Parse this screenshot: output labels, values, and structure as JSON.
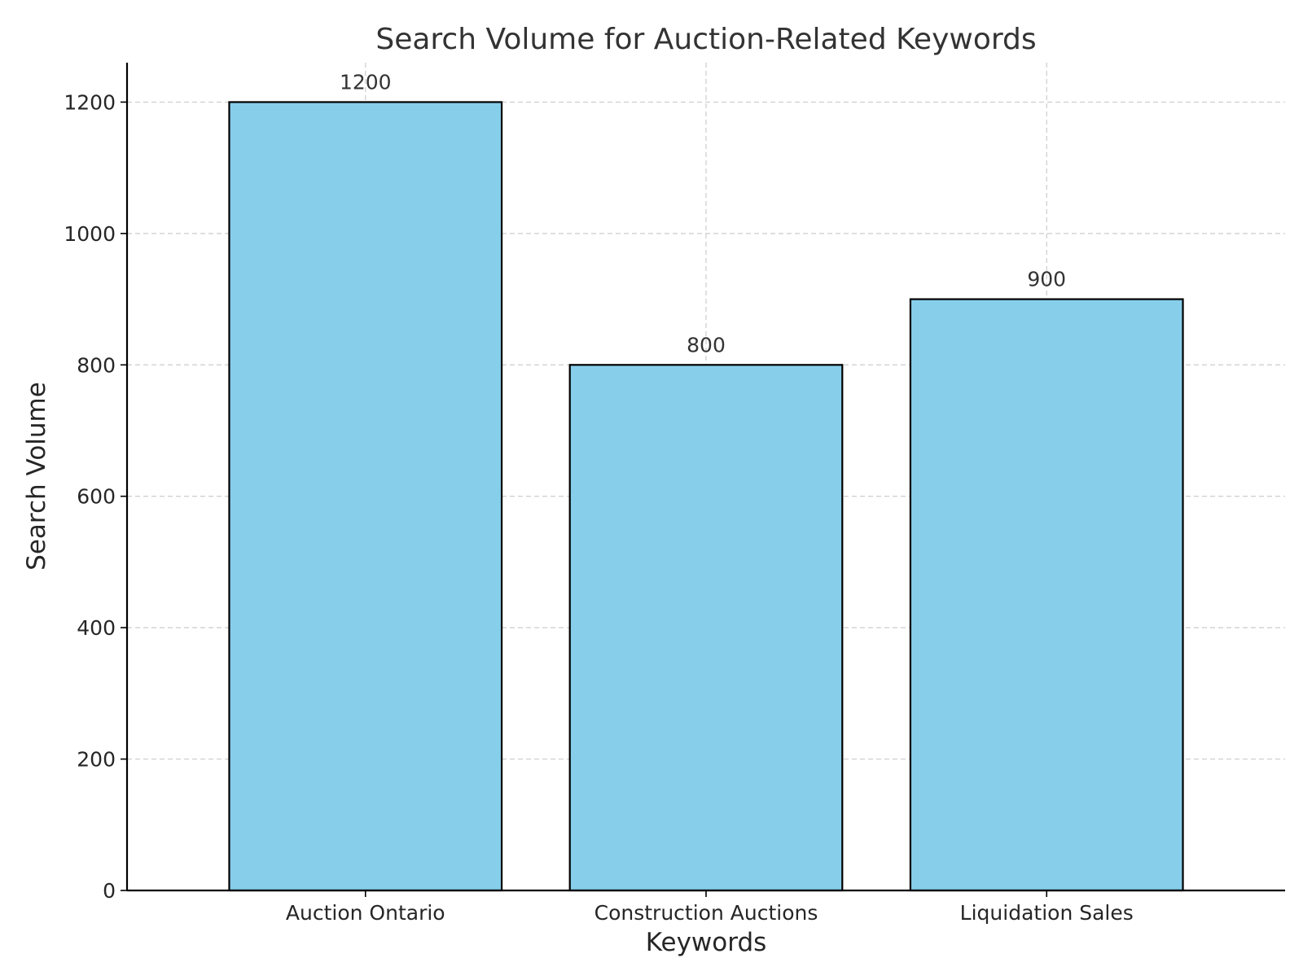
{
  "chart_data": {
    "type": "bar",
    "title": "Search Volume for Auction-Related Keywords",
    "xlabel": "Keywords",
    "ylabel": "Search Volume",
    "categories": [
      "Auction Ontario",
      "Construction Auctions",
      "Liquidation Sales"
    ],
    "values": [
      1200,
      800,
      900
    ],
    "data_labels": [
      "1200",
      "800",
      "900"
    ],
    "ylim": [
      0,
      1260
    ],
    "yticks": [
      0,
      200,
      400,
      600,
      800,
      1000,
      1200
    ],
    "grid": true,
    "legend": false,
    "colors": {
      "bar_fill": "#87ceeb",
      "bar_edge": "#000000",
      "grid": "#cccccc"
    }
  }
}
